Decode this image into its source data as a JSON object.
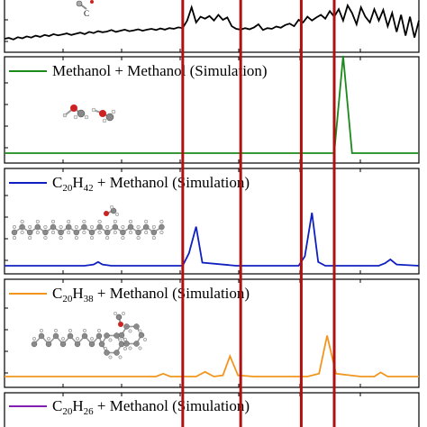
{
  "figure": {
    "top_partial_label": "C"
  },
  "colors": {
    "top": "#000000",
    "methanol": "#1a8a1a",
    "c20h42": "#1020c0",
    "c20h38": "#f0961e",
    "c20h26": "#8020b0",
    "marker": "#b01010",
    "frame": "#000000"
  },
  "chart_data": [
    {
      "type": "line",
      "panel": "top",
      "series": [
        {
          "x": [
            0,
            5,
            10,
            15,
            20,
            25,
            30,
            35,
            40,
            45,
            50,
            55,
            60,
            65,
            70,
            75,
            80,
            85,
            90,
            95,
            100,
            105,
            110,
            115,
            120,
            125,
            130,
            135,
            140,
            145,
            150,
            155,
            160,
            165,
            170,
            175,
            180,
            185,
            190,
            195,
            200,
            205,
            210,
            215,
            220,
            225,
            230,
            235,
            240,
            245,
            250,
            255,
            260,
            265,
            270,
            275,
            280,
            285,
            290,
            295,
            300,
            305,
            310,
            315,
            320,
            325,
            330,
            335,
            340,
            345,
            350,
            355,
            360,
            365,
            370,
            375,
            380,
            385,
            390,
            395,
            400,
            405,
            410,
            415,
            420,
            425,
            430,
            435,
            440,
            445,
            450,
            455,
            460,
            465
          ],
          "y": [
            0.12,
            0.14,
            0.1,
            0.16,
            0.13,
            0.18,
            0.15,
            0.2,
            0.17,
            0.22,
            0.19,
            0.24,
            0.21,
            0.23,
            0.26,
            0.22,
            0.25,
            0.28,
            0.24,
            0.3,
            0.27,
            0.32,
            0.29,
            0.31,
            0.35,
            0.3,
            0.33,
            0.36,
            0.32,
            0.34,
            0.37,
            0.33,
            0.36,
            0.38,
            0.35,
            0.39,
            0.36,
            0.4,
            0.38,
            0.42,
            0.4,
            0.6,
            0.95,
            0.55,
            0.7,
            0.65,
            0.72,
            0.6,
            0.75,
            0.62,
            0.68,
            0.45,
            0.38,
            0.36,
            0.4,
            0.37,
            0.42,
            0.5,
            0.35,
            0.4,
            0.38,
            0.44,
            0.41,
            0.48,
            0.52,
            0.45,
            0.62,
            0.55,
            0.7,
            0.6,
            0.68,
            0.75,
            0.65,
            0.85,
            0.7,
            0.9,
            0.6,
            1.0,
            0.8,
            0.5,
            0.95,
            0.7,
            0.55,
            0.9,
            0.6,
            0.88,
            0.45,
            0.8,
            0.3,
            0.75,
            0.2,
            0.7,
            0.15,
            0.6
          ]
        }
      ]
    },
    {
      "type": "line",
      "panel": "methanol",
      "legend": "Methanol + Methanol (Simulation)",
      "series": [
        {
          "name": "Methanol + Methanol (Simulation)",
          "x": [
            0,
            50,
            100,
            150,
            200,
            250,
            300,
            350,
            370,
            380,
            390,
            465
          ],
          "y": [
            0,
            0,
            0,
            0,
            0,
            0,
            0,
            0,
            0,
            1.0,
            0,
            0
          ]
        }
      ]
    },
    {
      "type": "line",
      "panel": "c20h42",
      "legend": {
        "pre": "C",
        "sub1": "20",
        "mid": "H",
        "sub2": "42",
        "post": " + Methanol (Simulation)"
      },
      "series": [
        {
          "name": "C20H42 + Methanol (Simulation)",
          "x": [
            0,
            90,
            100,
            105,
            110,
            120,
            180,
            200,
            207,
            215,
            222,
            260,
            300,
            330,
            337,
            345,
            352,
            360,
            420,
            427,
            433,
            440,
            465
          ],
          "y": [
            0,
            0,
            0.02,
            0.06,
            0.02,
            0,
            0,
            0,
            0.2,
            0.62,
            0.05,
            0,
            0,
            0,
            0.15,
            0.84,
            0.06,
            0,
            0,
            0.04,
            0.1,
            0.02,
            0
          ]
        }
      ]
    },
    {
      "type": "line",
      "panel": "c20h38",
      "legend": {
        "pre": "C",
        "sub1": "20",
        "mid": "H",
        "sub2": "38",
        "post": " + Methanol (Simulation)"
      },
      "series": [
        {
          "name": "C20H38 + Methanol (Simulation)",
          "x": [
            0,
            60,
            120,
            170,
            178,
            186,
            200,
            215,
            225,
            235,
            245,
            253,
            262,
            280,
            300,
            340,
            353,
            362,
            372,
            400,
            415,
            422,
            430,
            465
          ],
          "y": [
            0,
            0,
            0,
            0,
            0.05,
            0,
            0,
            0,
            0.08,
            0,
            0.02,
            0.35,
            0.02,
            0,
            0,
            0,
            0.05,
            0.7,
            0.05,
            0,
            0,
            0.07,
            0,
            0
          ]
        }
      ]
    },
    {
      "type": "line",
      "panel": "c20h26",
      "legend": {
        "pre": "C",
        "sub1": "20",
        "mid": "H",
        "sub2": "26",
        "post": " + Methanol (Simulation)"
      },
      "series": []
    }
  ],
  "markers_x": [
    200,
    265,
    333,
    370
  ]
}
